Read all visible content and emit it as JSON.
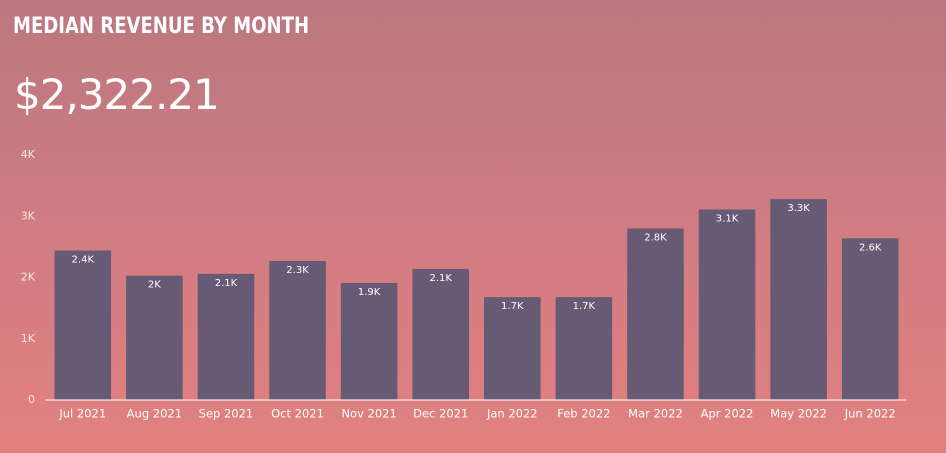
{
  "header": {
    "title": "MEDIAN REVENUE BY MONTH",
    "value": "$2,322.21"
  },
  "chart_data": {
    "type": "bar",
    "categories": [
      "Jul 2021",
      "Aug 2021",
      "Sep 2021",
      "Oct 2021",
      "Nov 2021",
      "Dec 2021",
      "Jan 2022",
      "Feb 2022",
      "Mar 2022",
      "Apr 2022",
      "May 2022",
      "Jun 2022"
    ],
    "values": [
      2440,
      2030,
      2060,
      2270,
      1910,
      2140,
      1680,
      1680,
      2800,
      3110,
      3280,
      2640
    ],
    "value_labels": [
      "2.4K",
      "2K",
      "2.1K",
      "2.3K",
      "1.9K",
      "2.1K",
      "1.7K",
      "1.7K",
      "2.8K",
      "3.1K",
      "3.3K",
      "2.6K"
    ],
    "color": "#665a75",
    "ylim": [
      0,
      4000
    ],
    "yticks": [
      0,
      {
        "value": 1000,
        "label": "1K"
      },
      {
        "value": 2000,
        "label": "2K"
      },
      {
        "value": 3000,
        "label": "3K"
      },
      {
        "value": 4000,
        "label": "4K"
      }
    ],
    "grid": false
  }
}
